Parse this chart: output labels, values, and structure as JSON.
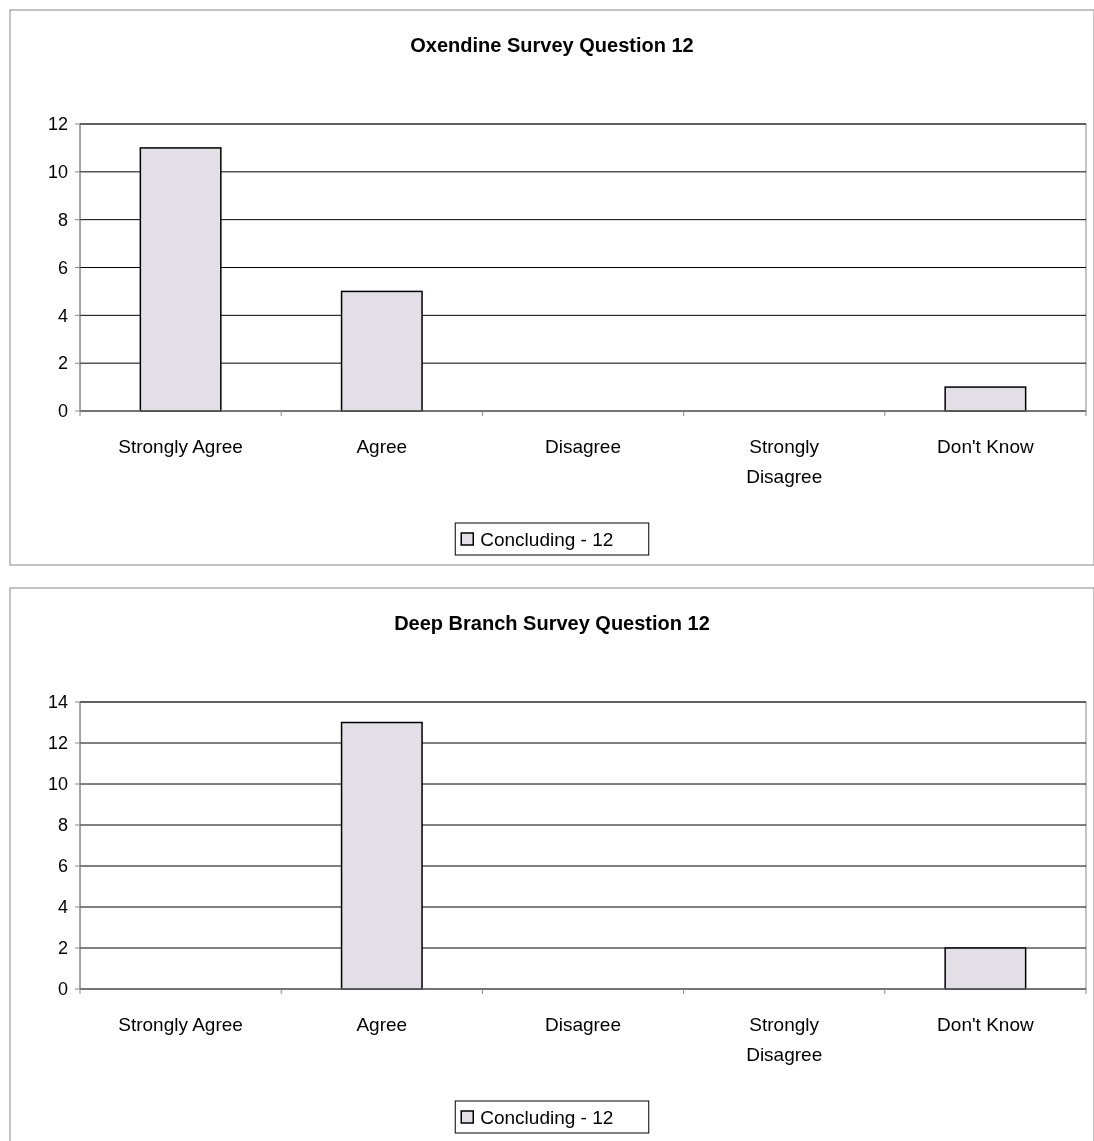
{
  "chart_data": [
    {
      "type": "bar",
      "title": "Oxendine Survey Question 12",
      "categories": [
        "Strongly Agree",
        "Agree",
        "Disagree",
        "Strongly Disagree",
        "Don't Know"
      ],
      "series": [
        {
          "name": "Concluding - 12",
          "color": "#e2dfe6",
          "values": [
            11,
            5,
            0,
            0,
            1
          ]
        }
      ],
      "ylim": [
        0,
        12
      ],
      "yticks": [
        0,
        2,
        4,
        6,
        8,
        10,
        12
      ],
      "grid": "y",
      "legend": "bottom"
    },
    {
      "type": "bar",
      "title": "Deep Branch Survey Question 12",
      "categories": [
        "Strongly Agree",
        "Agree",
        "Disagree",
        "Strongly Disagree",
        "Don't Know"
      ],
      "series": [
        {
          "name": "Concluding - 12",
          "color": "#e2dfe6",
          "values": [
            0,
            13,
            0,
            0,
            2
          ]
        }
      ],
      "ylim": [
        0,
        14
      ],
      "yticks": [
        0,
        2,
        4,
        6,
        8,
        10,
        12,
        14
      ],
      "grid": "y",
      "legend": "bottom"
    }
  ]
}
